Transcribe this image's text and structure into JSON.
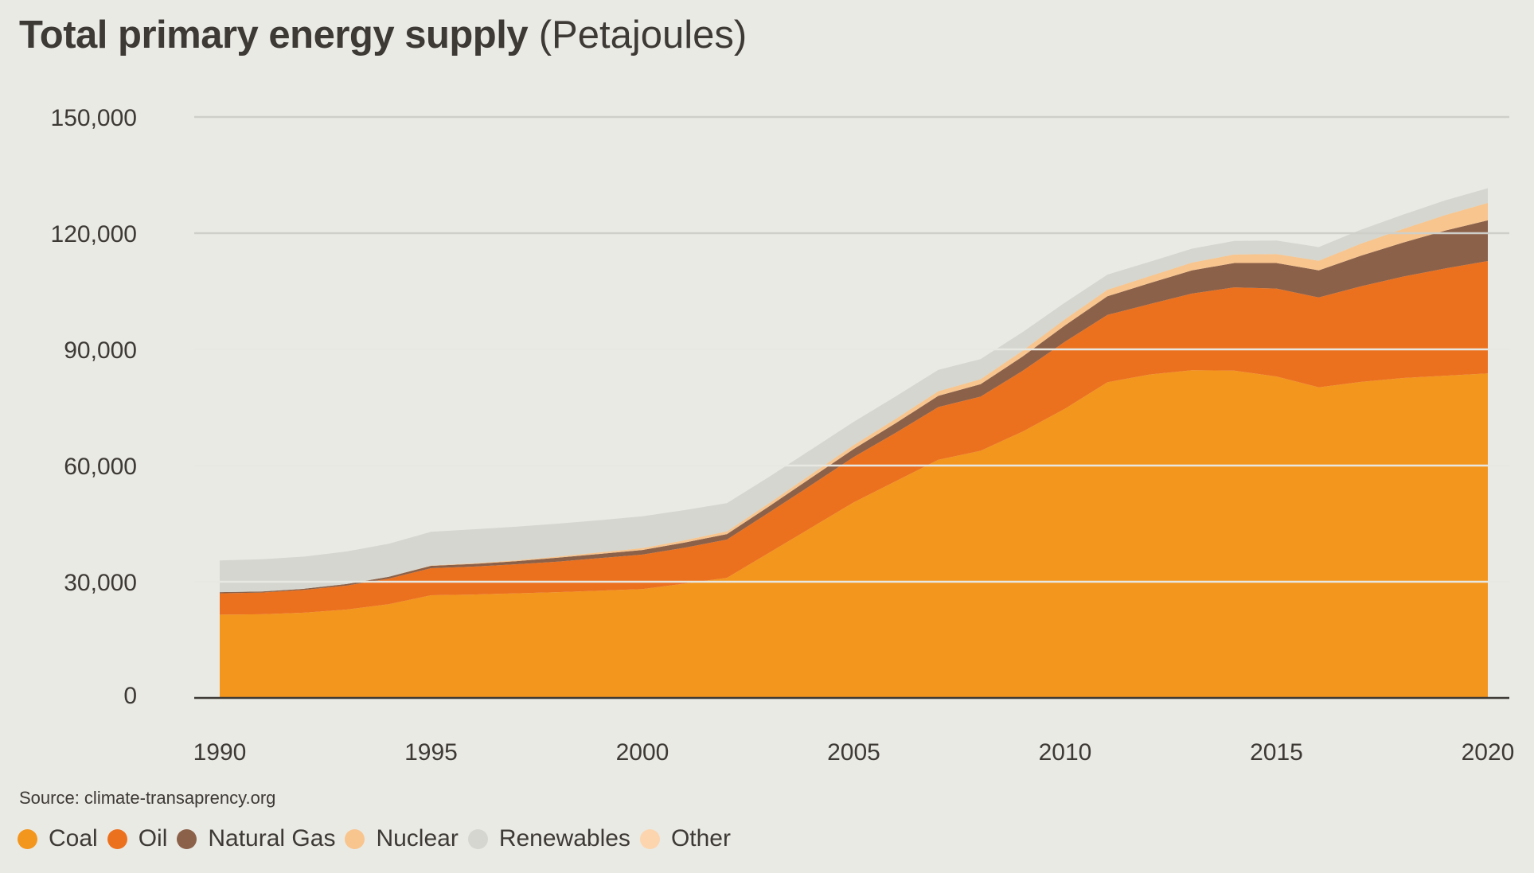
{
  "title": {
    "main": "Total primary energy supply",
    "sub": "(Petajoules)"
  },
  "source": "Source: climate-transaprency.org",
  "chart_data": {
    "type": "area",
    "stacked": true,
    "title": "Total primary energy supply (Petajoules)",
    "x": [
      1990,
      1991,
      1992,
      1993,
      1994,
      1995,
      1996,
      1997,
      1998,
      1999,
      2000,
      2001,
      2002,
      2003,
      2004,
      2005,
      2006,
      2007,
      2008,
      2009,
      2010,
      2011,
      2012,
      2013,
      2014,
      2015,
      2016,
      2017,
      2018,
      2019,
      2020
    ],
    "x_ticks": [
      1990,
      1995,
      2000,
      2005,
      2010,
      2015,
      2020
    ],
    "x_tick_labels": [
      "1990",
      "1995",
      "2000",
      "2005",
      "2010",
      "2015",
      "2020"
    ],
    "y_ticks": [
      0,
      30000,
      60000,
      90000,
      120000,
      150000
    ],
    "y_tick_labels": [
      "0",
      "30,000",
      "60,000",
      "90,000",
      "120,000",
      "150,000"
    ],
    "ylim": [
      0,
      150000
    ],
    "xlim": [
      1990,
      2020
    ],
    "grid": "horizontal",
    "legend_position": "bottom",
    "series": [
      {
        "name": "Coal",
        "color": "#f3961e",
        "values": [
          21500,
          21600,
          22000,
          22800,
          24200,
          26500,
          26700,
          27000,
          27300,
          27700,
          28100,
          29500,
          31000,
          37500,
          44000,
          50500,
          56000,
          61500,
          63800,
          68800,
          74700,
          81500,
          83500,
          84600,
          84500,
          83000,
          80200,
          81600,
          82600,
          83200,
          83800
        ]
      },
      {
        "name": "Oil",
        "color": "#ec711f",
        "values": [
          5500,
          5600,
          5900,
          6200,
          6600,
          7000,
          7200,
          7500,
          7900,
          8400,
          8900,
          9300,
          9900,
          10400,
          11000,
          11700,
          12500,
          13600,
          14000,
          15700,
          17300,
          17400,
          18200,
          19800,
          21500,
          22700,
          23200,
          24700,
          26200,
          27700,
          29000
        ]
      },
      {
        "name": "Natural Gas",
        "color": "#8c6149",
        "values": [
          300,
          300,
          300,
          400,
          500,
          600,
          700,
          800,
          1000,
          1100,
          1200,
          1300,
          1400,
          1600,
          1900,
          2100,
          2500,
          2900,
          3200,
          3700,
          4200,
          4800,
          5400,
          6000,
          6300,
          6600,
          7000,
          7900,
          8800,
          9800,
          10500
        ]
      },
      {
        "name": "Nuclear",
        "color": "#f8c58e",
        "values": [
          0,
          0,
          0,
          0,
          0,
          100,
          150,
          200,
          300,
          400,
          500,
          600,
          700,
          800,
          900,
          1000,
          1100,
          1200,
          1300,
          1500,
          1600,
          1700,
          1800,
          2000,
          2200,
          2300,
          2500,
          3100,
          3500,
          4000,
          4500
        ]
      },
      {
        "name": "Renewables",
        "color": "#d5d6cf",
        "values": [
          8200,
          8300,
          8300,
          8400,
          8500,
          8700,
          8800,
          8700,
          8500,
          8300,
          8200,
          7800,
          7300,
          6800,
          6400,
          6000,
          5800,
          5500,
          5200,
          4800,
          4300,
          3900,
          3700,
          3600,
          3500,
          3500,
          3500,
          3600,
          3700,
          3800,
          3800
        ]
      },
      {
        "name": "Other",
        "color": "#fcd5ae",
        "values": [
          0,
          0,
          0,
          0,
          0,
          0,
          0,
          0,
          0,
          0,
          0,
          0,
          0,
          0,
          0,
          0,
          0,
          0,
          0,
          0,
          0,
          0,
          0,
          0,
          0,
          0,
          0,
          0,
          0,
          0,
          0
        ]
      }
    ]
  }
}
